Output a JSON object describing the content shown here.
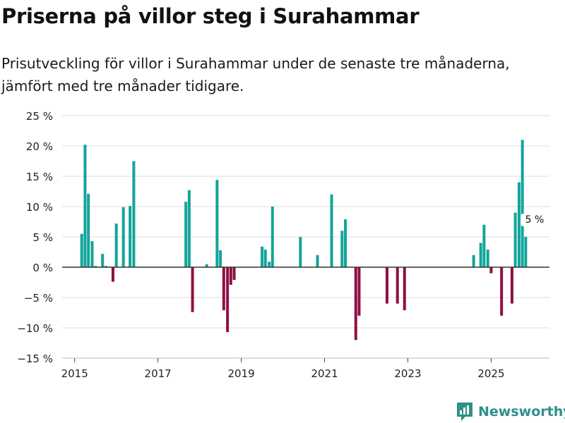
{
  "header": {
    "title": "Priserna på villor steg i Surahammar",
    "subtitle": "Prisutveckling för villor i Surahammar under de senaste tre månaderna, jämfört med tre månader tidigare."
  },
  "brand": {
    "name": "Newsworthy",
    "icon": "newsworthy-logo-icon"
  },
  "colors": {
    "positive": "#12a49a",
    "negative": "#8f0f45",
    "grid": "#dddddd",
    "zero": "#333333",
    "brand": "#2f8f8a"
  },
  "chart_data": {
    "type": "bar",
    "title": "Priserna på villor steg i Surahammar",
    "xlabel": "",
    "ylabel": "",
    "ylim": [
      -15,
      25
    ],
    "yticks": [
      -15,
      -10,
      -5,
      0,
      5,
      10,
      15,
      20,
      25
    ],
    "ytick_labels": [
      "−15 %",
      "−10 %",
      "−5 %",
      "0 %",
      "5 %",
      "10 %",
      "15 %",
      "20 %",
      "25 %"
    ],
    "xlim": [
      2014.7,
      2026.4
    ],
    "xticks": [
      2015,
      2017,
      2019,
      2021,
      2023,
      2025
    ],
    "xtick_labels": [
      "2015",
      "2017",
      "2019",
      "2021",
      "2023",
      "2025"
    ],
    "grid": true,
    "annotation": {
      "x": 2025.75,
      "value": 5,
      "text": "5 %"
    },
    "points": [
      {
        "x": 2015.17,
        "value": 5.5
      },
      {
        "x": 2015.25,
        "value": 20.2
      },
      {
        "x": 2015.33,
        "value": 12.1
      },
      {
        "x": 2015.42,
        "value": 4.3
      },
      {
        "x": 2015.5,
        "value": 0.2
      },
      {
        "x": 2015.67,
        "value": 2.2
      },
      {
        "x": 2015.75,
        "value": 0.2
      },
      {
        "x": 2015.92,
        "value": -2.4
      },
      {
        "x": 2016.0,
        "value": 7.2
      },
      {
        "x": 2016.17,
        "value": 9.9
      },
      {
        "x": 2016.33,
        "value": 10.1
      },
      {
        "x": 2016.42,
        "value": 17.5
      },
      {
        "x": 2017.67,
        "value": 10.8
      },
      {
        "x": 2017.75,
        "value": 12.7
      },
      {
        "x": 2017.83,
        "value": -7.4
      },
      {
        "x": 2018.17,
        "value": 0.5
      },
      {
        "x": 2018.42,
        "value": 14.4
      },
      {
        "x": 2018.5,
        "value": 2.8
      },
      {
        "x": 2018.58,
        "value": -7.1
      },
      {
        "x": 2018.67,
        "value": -10.7
      },
      {
        "x": 2018.75,
        "value": -2.9
      },
      {
        "x": 2018.83,
        "value": -2.1
      },
      {
        "x": 2019.5,
        "value": 3.4
      },
      {
        "x": 2019.58,
        "value": 2.9
      },
      {
        "x": 2019.67,
        "value": 0.9
      },
      {
        "x": 2019.75,
        "value": 10.0
      },
      {
        "x": 2020.42,
        "value": 5.0
      },
      {
        "x": 2020.83,
        "value": 2.0
      },
      {
        "x": 2021.17,
        "value": 12.0
      },
      {
        "x": 2021.42,
        "value": 6.0
      },
      {
        "x": 2021.5,
        "value": 7.9
      },
      {
        "x": 2021.75,
        "value": -12.0
      },
      {
        "x": 2021.83,
        "value": -8.0
      },
      {
        "x": 2022.5,
        "value": -6.0
      },
      {
        "x": 2022.75,
        "value": -6.0
      },
      {
        "x": 2022.92,
        "value": -7.1
      },
      {
        "x": 2024.58,
        "value": 2.0
      },
      {
        "x": 2024.75,
        "value": 4.0
      },
      {
        "x": 2024.83,
        "value": 7.0
      },
      {
        "x": 2024.92,
        "value": 2.9
      },
      {
        "x": 2025.0,
        "value": -1.0
      },
      {
        "x": 2025.25,
        "value": -8.0
      },
      {
        "x": 2025.5,
        "value": -6.0
      },
      {
        "x": 2025.58,
        "value": 9.0
      },
      {
        "x": 2025.67,
        "value": 14.0
      },
      {
        "x": 2025.75,
        "value": 21.0
      },
      {
        "x": 2025.83,
        "value": 5.0
      }
    ]
  }
}
